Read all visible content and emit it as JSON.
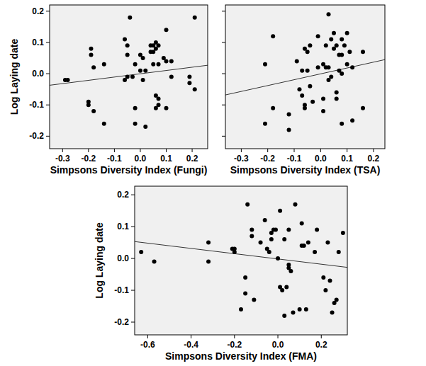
{
  "chart_data": [
    {
      "type": "scatter",
      "x_label": "Simpsons Diversity Index (Fungi)",
      "y_label": "Log Laying date",
      "color": "#000000",
      "marker": "circle",
      "xlim": [
        -0.35,
        0.26
      ],
      "ylim": [
        -0.24,
        0.22
      ],
      "xticks": [
        -0.3,
        -0.2,
        -0.1,
        {
          "value": 0,
          "label": "0.0"
        },
        0.1,
        0.2
      ],
      "yticks": [
        -0.2,
        -0.1,
        {
          "value": 0,
          "label": "0.0"
        },
        0.1,
        0.2
      ],
      "x": [
        -0.29,
        -0.28,
        -0.19,
        -0.19,
        -0.18,
        -0.2,
        -0.2,
        -0.18,
        -0.14,
        -0.14,
        -0.06,
        -0.05,
        -0.04,
        -0.05,
        -0.06,
        -0.05,
        -0.03,
        -0.02,
        -0.02,
        -0.02,
        0.0,
        0.01,
        0.0,
        0.01,
        0.02,
        0.02,
        0.04,
        0.05,
        0.04,
        0.05,
        0.06,
        0.06,
        0.07,
        0.05,
        0.06,
        0.07,
        0.07,
        0.06,
        0.07,
        0.09,
        0.1,
        0.1,
        0.1,
        0.12,
        0.12,
        0.19,
        0.19,
        0.21,
        0.21
      ],
      "values": [
        -0.02,
        -0.02,
        0.08,
        0.06,
        0.02,
        -0.09,
        -0.1,
        -0.12,
        0.03,
        -0.16,
        0.11,
        0.06,
        0.18,
        0.09,
        -0.02,
        -0.01,
        -0.01,
        0.03,
        -0.11,
        -0.16,
        0.06,
        0.05,
        0.01,
        -0.02,
        0.01,
        -0.17,
        0.09,
        0.09,
        0.07,
        0.07,
        0.08,
        0.1,
        0.09,
        0.03,
        -0.07,
        -0.08,
        -0.1,
        -0.11,
        0.03,
        0.05,
        0.04,
        0.14,
        -0.11,
        0.04,
        -0.01,
        -0.01,
        -0.03,
        0.18,
        -0.05
      ],
      "trendline": {
        "x": [
          -0.35,
          0.26
        ],
        "values": [
          -0.037,
          0.027
        ]
      }
    },
    {
      "type": "scatter",
      "x_label": "Simpsons Diversity Index (TSA)",
      "color": "#000000",
      "marker": "circle",
      "tick_labels": "x",
      "xlim": [
        -0.36,
        0.243
      ],
      "ylim": [
        -0.24,
        0.22
      ],
      "xticks": [
        -0.3,
        -0.2,
        -0.1,
        {
          "value": 0,
          "label": "0.0"
        },
        0.1,
        0.2
      ],
      "yticks": [
        -0.2,
        -0.1,
        0,
        0.1,
        0.2
      ],
      "x": [
        -0.21,
        -0.21,
        -0.18,
        -0.18,
        -0.12,
        -0.12,
        -0.09,
        -0.08,
        -0.07,
        -0.07,
        -0.06,
        -0.06,
        -0.06,
        -0.05,
        -0.05,
        -0.04,
        -0.04,
        -0.03,
        -0.01,
        -0.01,
        0.01,
        0.01,
        0.01,
        0.02,
        0.02,
        0.03,
        0.03,
        0.04,
        0.04,
        0.05,
        0.05,
        0.06,
        0.06,
        0.06,
        0.07,
        0.07,
        0.08,
        0.08,
        0.08,
        0.09,
        0.1,
        0.1,
        0.11,
        0.12,
        0.12,
        0.08,
        0.16,
        0.16,
        0.03
      ],
      "values": [
        0.03,
        -0.16,
        0.12,
        -0.11,
        -0.13,
        -0.18,
        0.04,
        -0.05,
        -0.07,
        0.01,
        -0.1,
        -0.11,
        0.08,
        0.07,
        0.01,
        0.09,
        -0.04,
        -0.09,
        0.02,
        0.12,
        0.03,
        -0.08,
        -0.12,
        0.09,
        0.02,
        0.19,
        0.02,
        -0.01,
        0.11,
        0.08,
        0.13,
        0.09,
        -0.06,
        -0.08,
        0.06,
        0.01,
        0.06,
        0.11,
        0.0,
        0.09,
        0.13,
        0.03,
        0.07,
        -0.15,
        0.02,
        -0.16,
        0.07,
        -0.11,
        -0.02
      ],
      "trendline": {
        "x": [
          -0.36,
          0.243
        ],
        "values": [
          -0.068,
          0.045
        ]
      }
    },
    {
      "type": "scatter",
      "x_label": "Simpsons Diversity Index (FMA)",
      "y_label": "Log Laying date",
      "color": "#000000",
      "marker": "circle",
      "xlim": [
        -0.66,
        0.32
      ],
      "ylim": [
        -0.24,
        0.227
      ],
      "xticks": [
        -0.6,
        -0.4,
        -0.2,
        {
          "value": 0,
          "label": "0.0"
        },
        0.2
      ],
      "yticks": [
        -0.2,
        -0.1,
        {
          "value": 0,
          "label": "0.0"
        },
        0.1,
        0.2
      ],
      "x": [
        -0.63,
        -0.57,
        -0.32,
        -0.32,
        -0.21,
        -0.2,
        -0.2,
        -0.17,
        -0.14,
        -0.15,
        -0.15,
        -0.12,
        -0.12,
        -0.11,
        -0.08,
        -0.06,
        -0.05,
        -0.04,
        -0.03,
        -0.03,
        -0.02,
        -0.01,
        0.0,
        0.01,
        0.01,
        0.02,
        0.03,
        0.03,
        0.04,
        0.05,
        0.05,
        0.06,
        0.07,
        0.08,
        0.1,
        0.11,
        0.11,
        0.12,
        0.13,
        0.14,
        0.17,
        0.18,
        0.21,
        0.22,
        0.23,
        0.24,
        0.25,
        0.26,
        0.27,
        0.28,
        0.3,
        0.05
      ],
      "values": [
        0.02,
        -0.01,
        0.05,
        -0.01,
        0.03,
        0.02,
        0.03,
        -0.16,
        0.17,
        -0.06,
        -0.11,
        0.09,
        0.07,
        -0.13,
        0.05,
        0.12,
        0.03,
        0.02,
        0.08,
        0.06,
        0.09,
        0.09,
        0.0,
        0.15,
        -0.09,
        -0.1,
        -0.18,
        0.06,
        -0.09,
        0.09,
        -0.03,
        -0.04,
        -0.17,
        0.17,
        -0.16,
        0.11,
        0.04,
        0.04,
        -0.16,
        0.05,
        0.02,
        0.09,
        -0.06,
        -0.1,
        0.05,
        -0.07,
        -0.17,
        -0.14,
        -0.13,
        0.02,
        0.08,
        -0.02
      ],
      "trendline": {
        "x": [
          -0.66,
          0.32
        ],
        "values": [
          0.053,
          -0.028
        ]
      }
    }
  ]
}
